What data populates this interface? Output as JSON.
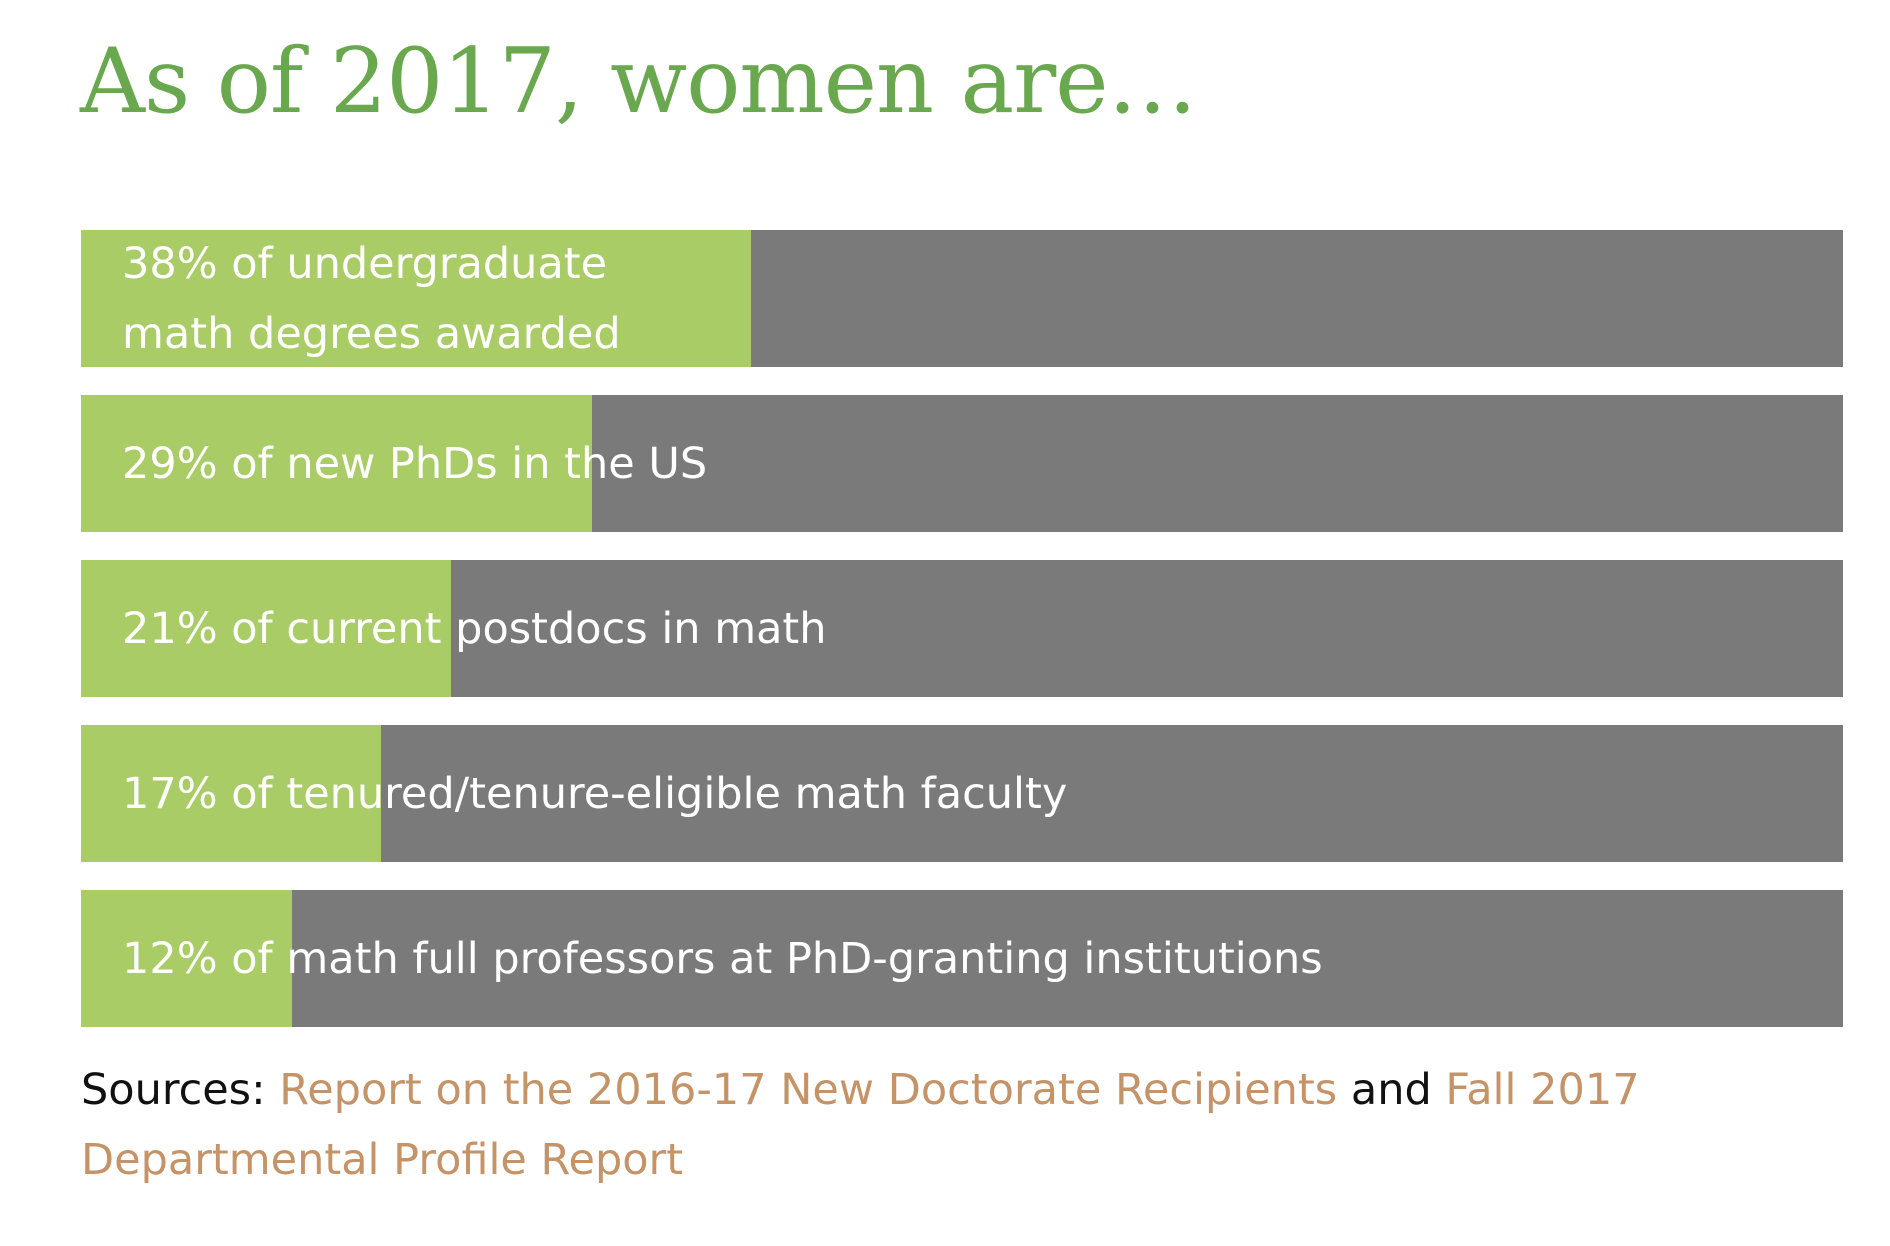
{
  "title": "As of 2017, women are…",
  "colors": {
    "title": "#6aa84f",
    "fill": "#a9cc66",
    "remainder": "#7a7a7a",
    "link": "#c49368",
    "label": "#ffffff"
  },
  "chart_data": {
    "type": "bar",
    "orientation": "horizontal",
    "stacked_to_100": true,
    "xlim": [
      0,
      100
    ],
    "categories": [
      "38% of undergraduate math degrees awarded",
      "29% of new PhDs in the US",
      "21% of current postdocs in math",
      "17% of tenured/tenure-eligible math faculty",
      "12% of math full professors at PhD-granting institutions"
    ],
    "values": [
      38,
      29,
      21,
      17,
      12
    ]
  },
  "sources": {
    "prefix": "Sources: ",
    "link1": "Report on the 2016-17 New Doctorate Recipients",
    "joiner": " and ",
    "link2": "Fall 2017 Departmental Profile Report"
  }
}
